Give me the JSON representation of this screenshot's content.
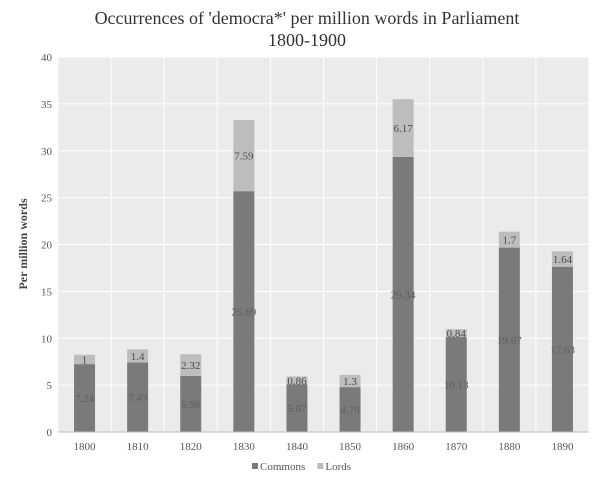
{
  "chart_data": {
    "type": "bar",
    "stacked": true,
    "title": "Occurrences of 'democra*' per million words in Parliament",
    "subtitle": "1800-1900",
    "xlabel": "",
    "ylabel": "Per million words",
    "ylim": [
      0,
      40
    ],
    "yticks": [
      0,
      5,
      10,
      15,
      20,
      25,
      30,
      35,
      40
    ],
    "grid": true,
    "legend": "bottom",
    "categories": [
      "1800",
      "1810",
      "1820",
      "1830",
      "1840",
      "1850",
      "1860",
      "1870",
      "1880",
      "1890"
    ],
    "series": [
      {
        "name": "Commons",
        "color": "#7a7a7a",
        "values": [
          7.24,
          7.43,
          5.98,
          25.69,
          5.07,
          4.79,
          29.34,
          10.13,
          19.67,
          17.63
        ],
        "labels": [
          "7.24",
          "7.43",
          "5.98",
          "25.69",
          "5.07",
          "4.79",
          "29.34",
          "10.13",
          "19.67",
          "17.63"
        ]
      },
      {
        "name": "Lords",
        "color": "#bdbdbd",
        "values": [
          1,
          1.4,
          2.32,
          7.59,
          0.86,
          1.3,
          6.17,
          0.84,
          1.7,
          1.64
        ],
        "labels": [
          "1",
          "1.4",
          "2.32",
          "7.59",
          "0.86",
          "1.3",
          "6.17",
          "0.84",
          "1.7",
          "1.64"
        ]
      }
    ]
  }
}
